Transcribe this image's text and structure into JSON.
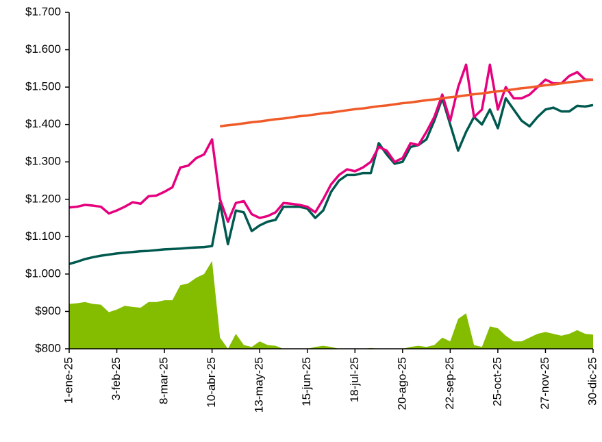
{
  "chart_data": {
    "type": "line",
    "categories": [
      "1-ene-25",
      null,
      null,
      null,
      null,
      null,
      "3-feb-25",
      null,
      null,
      null,
      null,
      null,
      "8-mar-25",
      null,
      null,
      null,
      null,
      null,
      "10-abr-25",
      null,
      null,
      null,
      null,
      null,
      "13-may-25",
      null,
      null,
      null,
      null,
      null,
      "15-jun-25",
      null,
      null,
      null,
      null,
      null,
      "18-jul-25",
      null,
      null,
      null,
      null,
      null,
      "20-ago-25",
      null,
      null,
      null,
      null,
      null,
      "22-sep-25",
      null,
      null,
      null,
      null,
      null,
      "25-oct-25",
      null,
      null,
      null,
      null,
      null,
      "27-nov-25",
      null,
      null,
      null,
      null,
      null,
      "30-dic-25"
    ],
    "ylim": [
      800,
      1700
    ],
    "yticks": [
      {
        "value": 800,
        "label": "$800"
      },
      {
        "value": 900,
        "label": "$900"
      },
      {
        "value": 1000,
        "label": "$1.000"
      },
      {
        "value": 1100,
        "label": "$1.100"
      },
      {
        "value": 1200,
        "label": "$1.200"
      },
      {
        "value": 1300,
        "label": "$1.300"
      },
      {
        "value": 1400,
        "label": "$1.400"
      },
      {
        "value": 1500,
        "label": "$1.500"
      },
      {
        "value": 1600,
        "label": "$1.600"
      },
      {
        "value": 1700,
        "label": "$1.700"
      }
    ],
    "series": [
      {
        "kind": "area",
        "color": "#84bd00",
        "values": [
          920,
          922,
          925,
          920,
          918,
          898,
          905,
          915,
          912,
          910,
          925,
          925,
          930,
          930,
          970,
          975,
          990,
          1000,
          1035,
          830,
          800,
          840,
          810,
          805,
          820,
          810,
          808,
          800,
          800,
          800,
          800,
          805,
          808,
          805,
          800,
          800,
          800,
          800,
          802,
          800,
          800,
          800,
          800,
          805,
          808,
          805,
          810,
          830,
          820,
          880,
          895,
          810,
          805,
          860,
          855,
          835,
          820,
          820,
          830,
          840,
          845,
          840,
          835,
          840,
          850,
          840,
          838
        ]
      },
      {
        "kind": "line",
        "color": "#00594f",
        "values": [
          1027,
          1033,
          1040,
          1045,
          1049,
          1052,
          1055,
          1057,
          1059,
          1061,
          1062,
          1064,
          1066,
          1067,
          1068,
          1070,
          1071,
          1072,
          1075,
          1190,
          1080,
          1170,
          1165,
          1115,
          1130,
          1140,
          1145,
          1180,
          1180,
          1180,
          1175,
          1150,
          1170,
          1220,
          1250,
          1265,
          1265,
          1270,
          1270,
          1350,
          1320,
          1295,
          1300,
          1340,
          1345,
          1360,
          1410,
          1470,
          1400,
          1330,
          1380,
          1420,
          1400,
          1440,
          1390,
          1470,
          1440,
          1410,
          1395,
          1420,
          1440,
          1445,
          1435,
          1435,
          1450,
          1448,
          1452
        ]
      },
      {
        "kind": "line",
        "color": "#e6007e",
        "values": [
          1178,
          1180,
          1185,
          1183,
          1180,
          1162,
          1170,
          1180,
          1192,
          1188,
          1208,
          1210,
          1220,
          1232,
          1285,
          1290,
          1310,
          1320,
          1360,
          1200,
          1140,
          1190,
          1195,
          1160,
          1150,
          1155,
          1165,
          1190,
          1188,
          1185,
          1180,
          1165,
          1200,
          1240,
          1265,
          1280,
          1275,
          1285,
          1300,
          1340,
          1330,
          1300,
          1310,
          1350,
          1345,
          1380,
          1420,
          1480,
          1410,
          1500,
          1560,
          1420,
          1440,
          1560,
          1440,
          1500,
          1470,
          1470,
          1480,
          1500,
          1520,
          1510,
          1510,
          1530,
          1540,
          1520,
          1520
        ]
      },
      {
        "kind": "line",
        "color": "#f05a28",
        "values": [
          null,
          null,
          null,
          null,
          null,
          null,
          null,
          null,
          null,
          null,
          null,
          null,
          null,
          null,
          null,
          null,
          null,
          null,
          null,
          1395,
          1398,
          1400,
          1403,
          1406,
          1408,
          1411,
          1414,
          1416,
          1419,
          1422,
          1424,
          1427,
          1430,
          1432,
          1435,
          1438,
          1441,
          1443,
          1446,
          1449,
          1451,
          1454,
          1457,
          1459,
          1462,
          1465,
          1467,
          1470,
          1473,
          1475,
          1478,
          1481,
          1483,
          1486,
          1489,
          1491,
          1494,
          1497,
          1499,
          1502,
          1505,
          1507,
          1510,
          1513,
          1515,
          1518,
          1520
        ]
      }
    ]
  }
}
